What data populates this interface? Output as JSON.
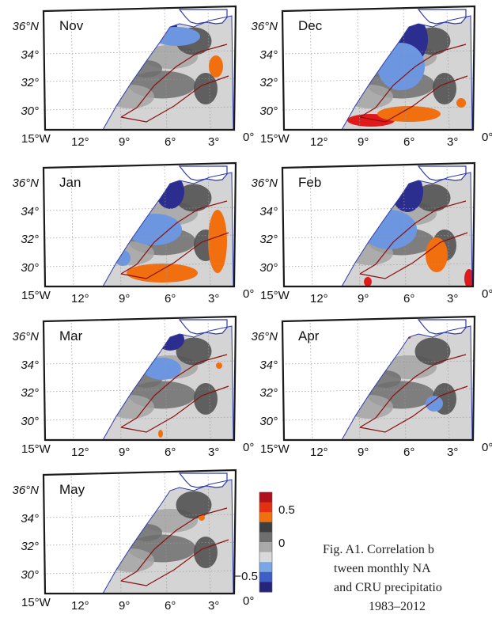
{
  "figure_caption_lines": [
    "Fig. A1. Correlation b",
    "tween   monthly   NA",
    "and CRU precipitatio",
    "1983–2012"
  ],
  "panels": [
    {
      "month": "Nov"
    },
    {
      "month": "Dec"
    },
    {
      "month": "Jan"
    },
    {
      "month": "Feb"
    },
    {
      "month": "Mar"
    },
    {
      "month": "Apr"
    },
    {
      "month": "May"
    }
  ],
  "lat_labels": [
    "36°N",
    "34°",
    "32°",
    "30°"
  ],
  "lon_labels": [
    "15°W",
    "12°",
    "9°",
    "6°",
    "3°",
    "0°"
  ],
  "colorbar": {
    "ticks": [
      "0.5",
      "0",
      "−0.5"
    ],
    "tick_values": [
      0.5,
      0,
      -0.5
    ],
    "range": [
      -0.75,
      0.75
    ],
    "colors": [
      "#26237a",
      "#3d5fc4",
      "#7aa6e6",
      "#d9d9d9",
      "#a9a9a9",
      "#6e6e6e",
      "#3f3f3f",
      "#f0700f",
      "#e23010",
      "#b0101a"
    ]
  },
  "colors": {
    "sea": "#ffffff",
    "land_light": "#d4d4d4",
    "gray_mid": "#a5a5a5",
    "gray_dark": "#6f6f6f",
    "gray_darker": "#4a4a4a",
    "blue_dark": "#2b2d8f",
    "blue_light": "#6d96e0",
    "orange": "#f26f10",
    "red": "#e01a1a",
    "contour": "#8b1010",
    "coast": "#2f3aa8",
    "frame": "#1a1a1a"
  }
}
